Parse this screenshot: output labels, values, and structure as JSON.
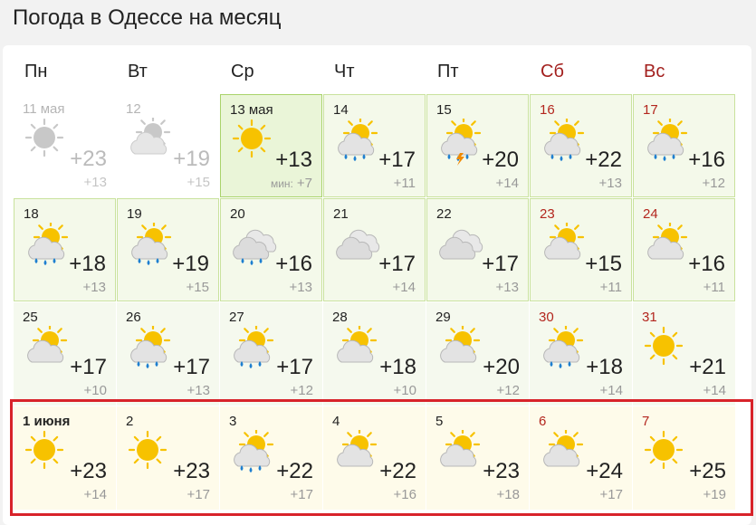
{
  "title": "Погода в Одессе на месяц",
  "weekdays": [
    "Пн",
    "Вт",
    "Ср",
    "Чт",
    "Пт",
    "Сб",
    "Вс"
  ],
  "weeks": [
    [
      {
        "day": "11 мая",
        "high": "+23",
        "low": "+13"
      },
      {
        "day": "12",
        "high": "+19",
        "low": "+15"
      },
      {
        "day": "13 мая",
        "high": "+13",
        "low_prefix": "мин:",
        "low": "+7"
      },
      {
        "day": "14",
        "high": "+17",
        "low": "+11"
      },
      {
        "day": "15",
        "high": "+20",
        "low": "+14"
      },
      {
        "day": "16",
        "high": "+22",
        "low": "+13"
      },
      {
        "day": "17",
        "high": "+16",
        "low": "+12"
      }
    ],
    [
      {
        "day": "18",
        "high": "+18",
        "low": "+13"
      },
      {
        "day": "19",
        "high": "+19",
        "low": "+15"
      },
      {
        "day": "20",
        "high": "+16",
        "low": "+13"
      },
      {
        "day": "21",
        "high": "+17",
        "low": "+14"
      },
      {
        "day": "22",
        "high": "+17",
        "low": "+13"
      },
      {
        "day": "23",
        "high": "+15",
        "low": "+11"
      },
      {
        "day": "24",
        "high": "+16",
        "low": "+11"
      }
    ],
    [
      {
        "day": "25",
        "high": "+17",
        "low": "+10"
      },
      {
        "day": "26",
        "high": "+17",
        "low": "+13"
      },
      {
        "day": "27",
        "high": "+17",
        "low": "+12"
      },
      {
        "day": "28",
        "high": "+18",
        "low": "+10"
      },
      {
        "day": "29",
        "high": "+20",
        "low": "+12"
      },
      {
        "day": "30",
        "high": "+18",
        "low": "+14"
      },
      {
        "day": "31",
        "high": "+21",
        "low": "+14"
      }
    ],
    [
      {
        "day": "1 июня",
        "high": "+23",
        "low": "+14"
      },
      {
        "day": "2",
        "high": "+23",
        "low": "+17"
      },
      {
        "day": "3",
        "high": "+22",
        "low": "+17"
      },
      {
        "day": "4",
        "high": "+22",
        "low": "+16"
      },
      {
        "day": "5",
        "high": "+23",
        "low": "+18"
      },
      {
        "day": "6",
        "high": "+24",
        "low": "+17"
      },
      {
        "day": "7",
        "high": "+25",
        "low": "+19"
      }
    ]
  ]
}
